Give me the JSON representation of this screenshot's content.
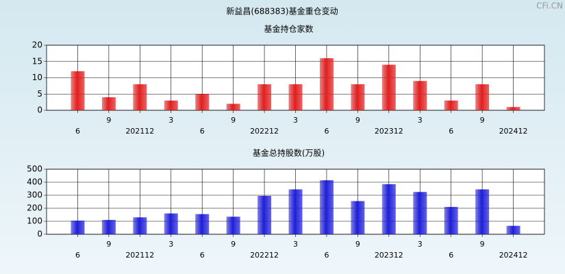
{
  "title": "新益昌(688383)基金重仓变动",
  "watermark": "CFi.CN",
  "chart_data": [
    {
      "type": "bar",
      "title": "基金持仓家数",
      "categories": [
        "6",
        "9",
        "202112",
        "3",
        "6",
        "9",
        "202212",
        "3",
        "6",
        "9",
        "202312",
        "3",
        "6",
        "9",
        "202412"
      ],
      "values": [
        12,
        4,
        8,
        3,
        5,
        2,
        8,
        8,
        16,
        8,
        14,
        9,
        3,
        8,
        1
      ],
      "color": "#e02020",
      "ylim": [
        0,
        20
      ],
      "yticks": [
        0,
        5,
        10,
        15,
        20
      ],
      "grid": true
    },
    {
      "type": "bar",
      "title": "基金总持股数(万股)",
      "categories": [
        "6",
        "9",
        "202112",
        "3",
        "6",
        "9",
        "202212",
        "3",
        "6",
        "9",
        "202312",
        "3",
        "6",
        "9",
        "202412"
      ],
      "values": [
        105,
        110,
        130,
        160,
        155,
        135,
        295,
        345,
        415,
        255,
        385,
        325,
        210,
        345,
        65
      ],
      "color": "#2020d8",
      "ylim": [
        0,
        500
      ],
      "yticks": [
        0,
        100,
        200,
        300,
        400,
        500
      ],
      "grid": true
    }
  ]
}
